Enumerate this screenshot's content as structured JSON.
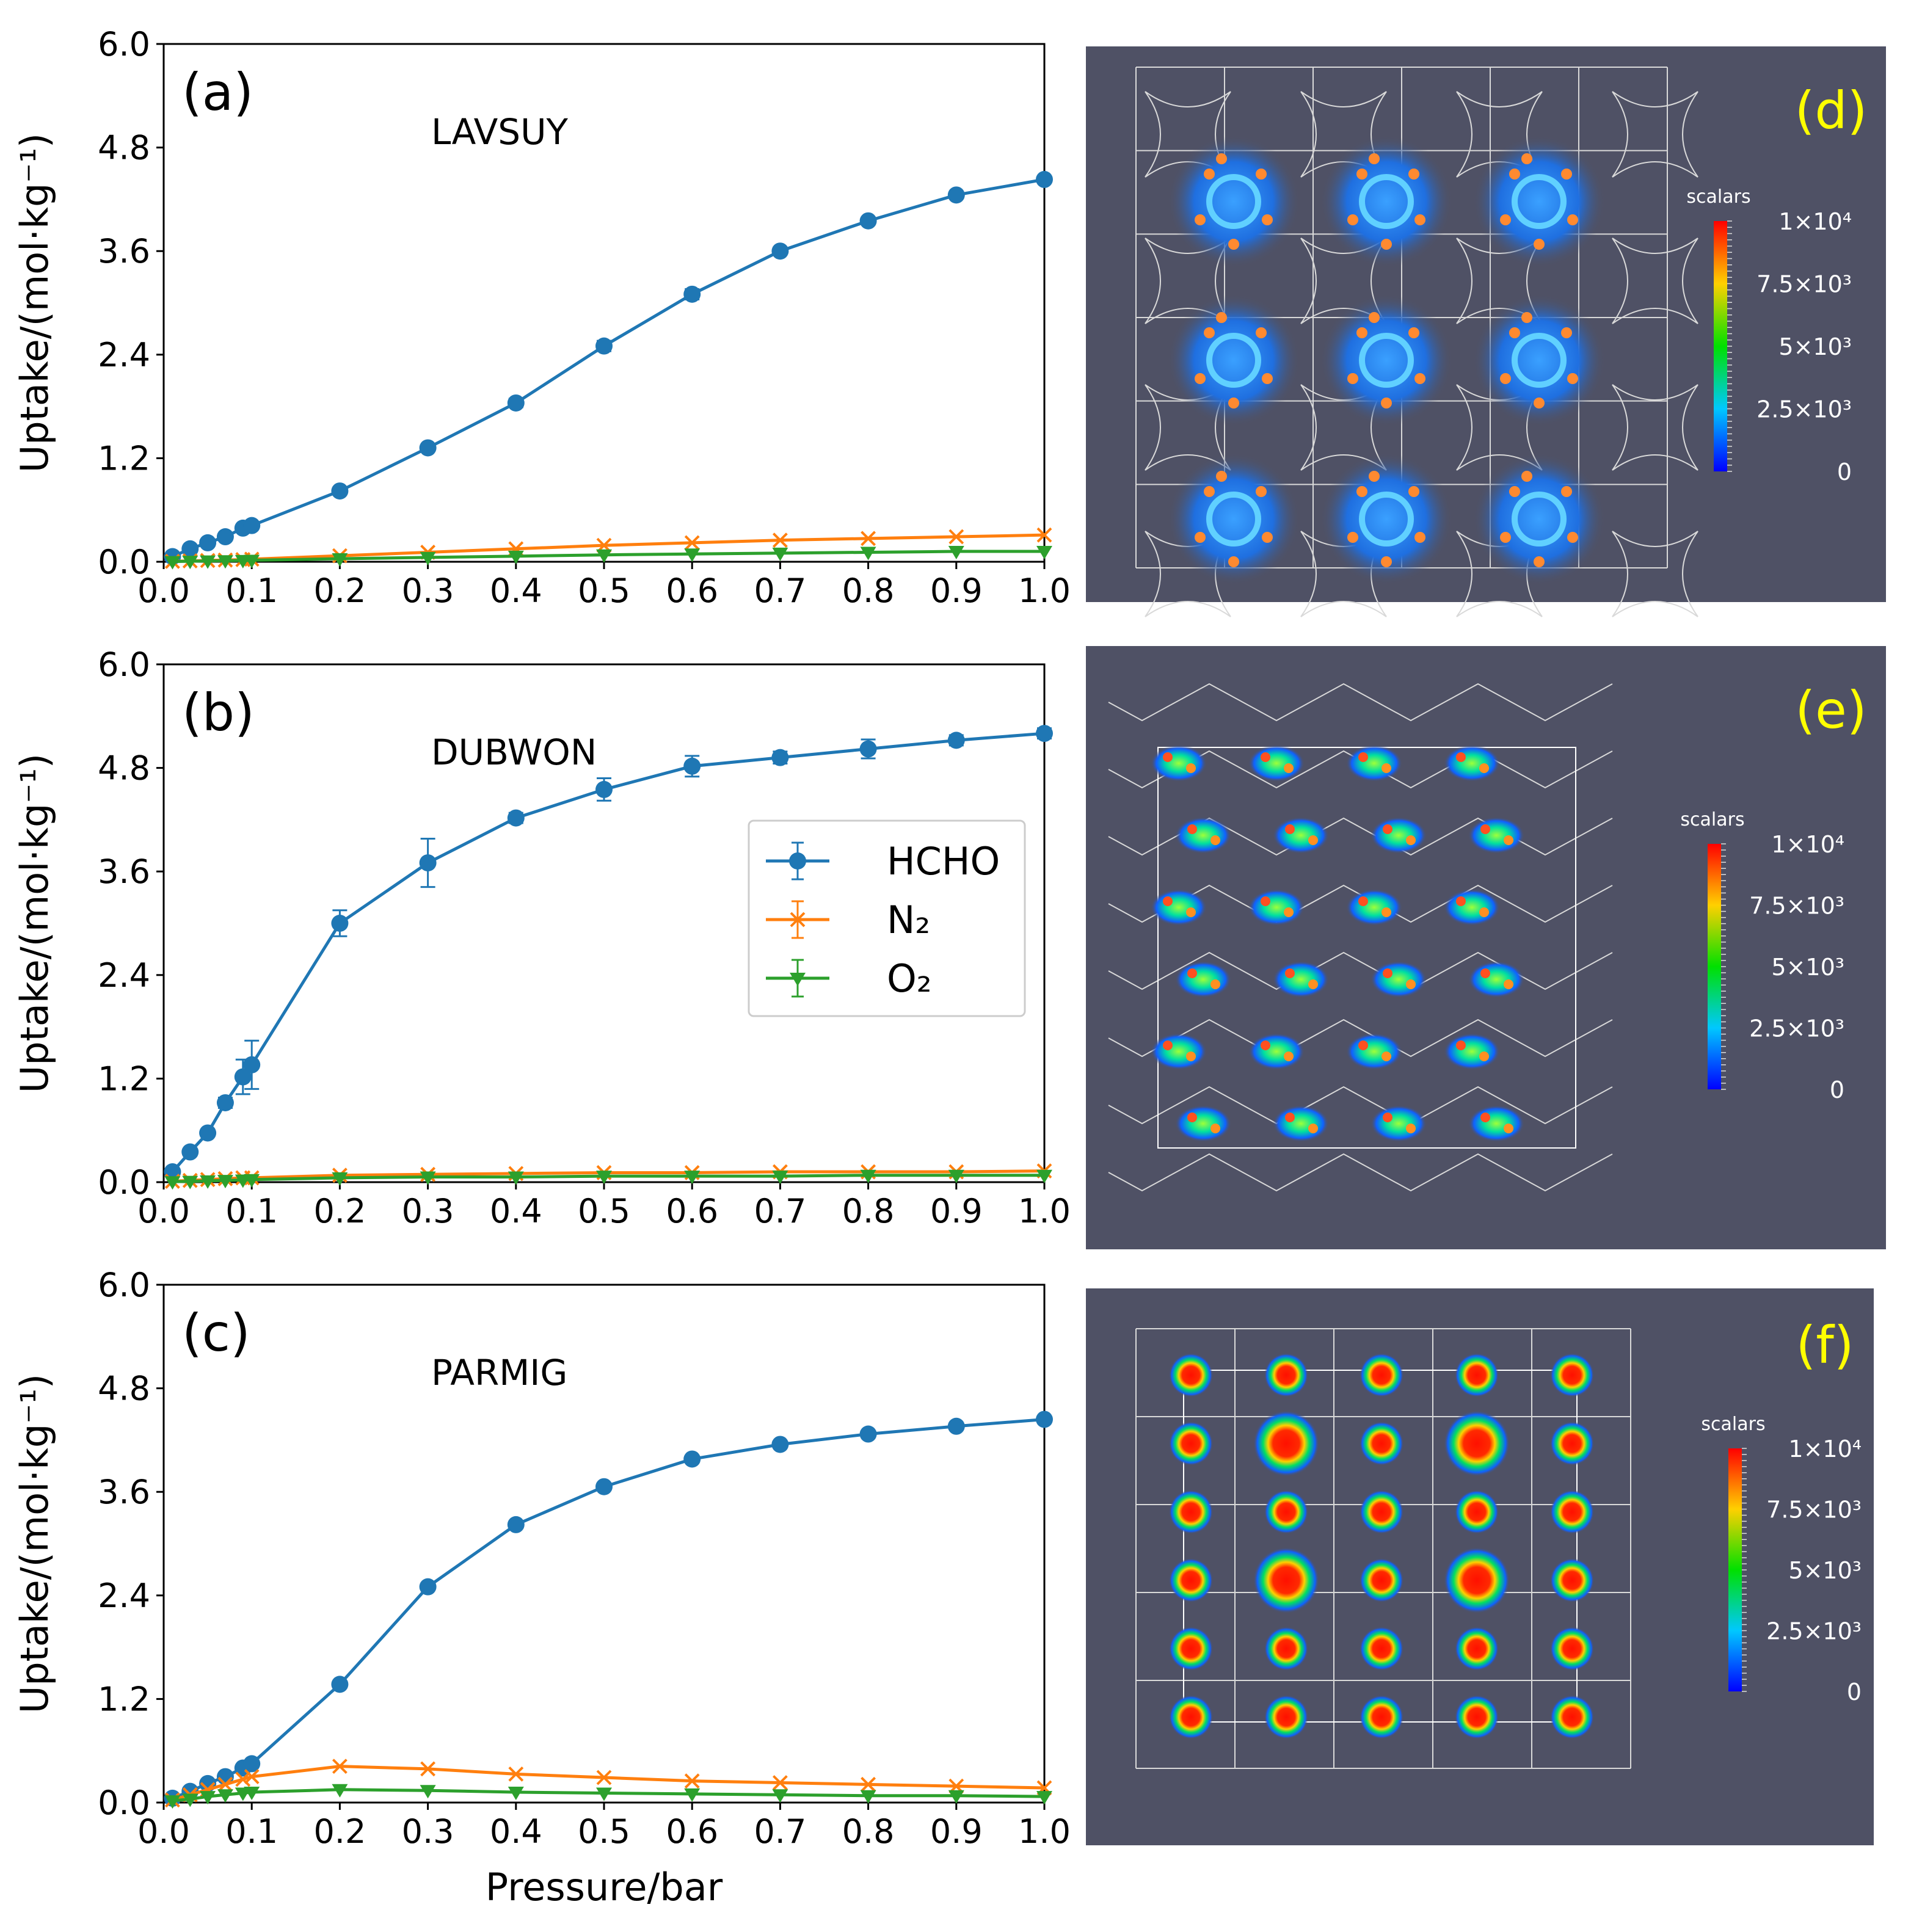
{
  "chart_data": [
    {
      "type": "line",
      "panel": "(a)",
      "name": "LAVSUY",
      "xlabel": "",
      "ylabel": "Uptake/(mol·kg⁻¹)",
      "xlim": [
        0,
        1.0
      ],
      "ylim": [
        0,
        6.0
      ],
      "xticks": [
        "0.0",
        "0.1",
        "0.2",
        "0.3",
        "0.4",
        "0.5",
        "0.6",
        "0.7",
        "0.8",
        "0.9",
        "1.0"
      ],
      "yticks": [
        "0.0",
        "1.2",
        "2.4",
        "3.6",
        "4.8",
        "6.0"
      ],
      "x": [
        0.01,
        0.03,
        0.05,
        0.07,
        0.09,
        0.1,
        0.2,
        0.3,
        0.4,
        0.5,
        0.6,
        0.7,
        0.8,
        0.9,
        1.0
      ],
      "series": [
        {
          "name": "HCHO",
          "values": [
            0.06,
            0.15,
            0.22,
            0.29,
            0.39,
            0.42,
            0.82,
            1.32,
            1.84,
            2.5,
            3.1,
            3.6,
            3.95,
            4.25,
            4.43
          ],
          "errors": [
            0.01,
            0.01,
            0.01,
            0.01,
            0.01,
            0.01,
            0.02,
            0.03,
            0.05,
            0.06,
            0.06,
            0.04,
            0.04,
            0.03,
            0.03
          ]
        },
        {
          "name": "N₂",
          "values": [
            0.005,
            0.01,
            0.015,
            0.02,
            0.025,
            0.03,
            0.07,
            0.11,
            0.15,
            0.19,
            0.22,
            0.25,
            0.27,
            0.29,
            0.31
          ],
          "errors": [
            0.005,
            0.005,
            0.005,
            0.005,
            0.005,
            0.005,
            0.005,
            0.01,
            0.01,
            0.01,
            0.01,
            0.01,
            0.01,
            0.01,
            0.01
          ]
        },
        {
          "name": "O₂",
          "values": [
            0.003,
            0.006,
            0.01,
            0.012,
            0.015,
            0.018,
            0.035,
            0.05,
            0.065,
            0.08,
            0.09,
            0.1,
            0.11,
            0.12,
            0.12
          ],
          "errors": [
            0.003,
            0.003,
            0.003,
            0.003,
            0.003,
            0.003,
            0.005,
            0.005,
            0.005,
            0.005,
            0.005,
            0.005,
            0.005,
            0.005,
            0.005
          ]
        }
      ]
    },
    {
      "type": "line",
      "panel": "(b)",
      "name": "DUBWON",
      "xlabel": "",
      "ylabel": "Uptake/(mol·kg⁻¹)",
      "xlim": [
        0,
        1.0
      ],
      "ylim": [
        0,
        6.0
      ],
      "xticks": [
        "0.0",
        "0.1",
        "0.2",
        "0.3",
        "0.4",
        "0.5",
        "0.6",
        "0.7",
        "0.8",
        "0.9",
        "1.0"
      ],
      "yticks": [
        "0.0",
        "1.2",
        "2.4",
        "3.6",
        "4.8",
        "6.0"
      ],
      "x": [
        0.01,
        0.03,
        0.05,
        0.07,
        0.09,
        0.1,
        0.2,
        0.3,
        0.4,
        0.5,
        0.6,
        0.7,
        0.8,
        0.9,
        1.0
      ],
      "series": [
        {
          "name": "HCHO",
          "values": [
            0.12,
            0.35,
            0.57,
            0.92,
            1.22,
            1.36,
            3.0,
            3.7,
            4.22,
            4.55,
            4.82,
            4.92,
            5.02,
            5.12,
            5.2
          ],
          "errors": [
            0.02,
            0.03,
            0.04,
            0.06,
            0.2,
            0.28,
            0.15,
            0.28,
            0.06,
            0.13,
            0.12,
            0.07,
            0.11,
            0.06,
            0.06
          ]
        },
        {
          "name": "N₂",
          "values": [
            0.01,
            0.02,
            0.03,
            0.04,
            0.05,
            0.05,
            0.08,
            0.09,
            0.1,
            0.11,
            0.11,
            0.12,
            0.12,
            0.12,
            0.13
          ],
          "errors": [
            0.005,
            0.005,
            0.005,
            0.005,
            0.005,
            0.005,
            0.005,
            0.005,
            0.005,
            0.005,
            0.005,
            0.005,
            0.005,
            0.005,
            0.005
          ]
        },
        {
          "name": "O₂",
          "values": [
            0.005,
            0.01,
            0.015,
            0.02,
            0.025,
            0.03,
            0.05,
            0.06,
            0.06,
            0.07,
            0.07,
            0.07,
            0.08,
            0.08,
            0.08
          ],
          "errors": [
            0.003,
            0.003,
            0.003,
            0.003,
            0.003,
            0.003,
            0.003,
            0.003,
            0.003,
            0.003,
            0.003,
            0.003,
            0.003,
            0.003,
            0.003
          ]
        }
      ]
    },
    {
      "type": "line",
      "panel": "(c)",
      "name": "PARMIG",
      "xlabel": "Pressure/bar",
      "ylabel": "Uptake/(mol·kg⁻¹)",
      "xlim": [
        0,
        1.0
      ],
      "ylim": [
        0,
        6.0
      ],
      "xticks": [
        "0.0",
        "0.1",
        "0.2",
        "0.3",
        "0.4",
        "0.5",
        "0.6",
        "0.7",
        "0.8",
        "0.9",
        "1.0"
      ],
      "yticks": [
        "0.0",
        "1.2",
        "2.4",
        "3.6",
        "4.8",
        "6.0"
      ],
      "x": [
        0.01,
        0.03,
        0.05,
        0.07,
        0.09,
        0.1,
        0.2,
        0.3,
        0.4,
        0.5,
        0.6,
        0.7,
        0.8,
        0.9,
        1.0
      ],
      "series": [
        {
          "name": "HCHO",
          "values": [
            0.05,
            0.13,
            0.22,
            0.3,
            0.4,
            0.45,
            1.37,
            2.5,
            3.22,
            3.66,
            3.98,
            4.15,
            4.27,
            4.36,
            4.44
          ],
          "errors": [
            0.01,
            0.01,
            0.01,
            0.01,
            0.02,
            0.02,
            0.03,
            0.03,
            0.03,
            0.03,
            0.03,
            0.03,
            0.03,
            0.03,
            0.03
          ]
        },
        {
          "name": "N₂",
          "values": [
            0.03,
            0.09,
            0.15,
            0.21,
            0.27,
            0.3,
            0.42,
            0.39,
            0.33,
            0.29,
            0.25,
            0.23,
            0.21,
            0.19,
            0.17
          ],
          "errors": [
            0.01,
            0.01,
            0.01,
            0.01,
            0.01,
            0.01,
            0.01,
            0.01,
            0.01,
            0.01,
            0.01,
            0.01,
            0.01,
            0.01,
            0.01
          ]
        },
        {
          "name": "O₂",
          "values": [
            0.02,
            0.04,
            0.07,
            0.09,
            0.11,
            0.12,
            0.15,
            0.14,
            0.12,
            0.11,
            0.1,
            0.09,
            0.08,
            0.08,
            0.07
          ],
          "errors": [
            0.005,
            0.005,
            0.005,
            0.005,
            0.005,
            0.005,
            0.005,
            0.005,
            0.005,
            0.005,
            0.005,
            0.005,
            0.005,
            0.005,
            0.005
          ]
        }
      ]
    }
  ],
  "legend": {
    "placement": "center-right of panel (b)",
    "entries": [
      {
        "label": "HCHO",
        "color": "#1f77b4",
        "marker": "circle"
      },
      {
        "label": "N₂",
        "color": "#ff7f0e",
        "marker": "x"
      },
      {
        "label": "O₂",
        "color": "#2ca02c",
        "marker": "triangle-down"
      }
    ]
  },
  "colors": {
    "HCHO": "#1f77b4",
    "N2": "#ff7f0e",
    "O2": "#2ca02c",
    "heatmap_bg": "#4f5165",
    "panel_letter": "#ffff00"
  },
  "heatmaps": [
    {
      "panel": "(d)",
      "colorbar_title": "scalars",
      "colorbar_labels": [
        "1×10⁴",
        "7.5×10³",
        "5×10³",
        "2.5×10³",
        "0"
      ]
    },
    {
      "panel": "(e)",
      "colorbar_title": "scalars",
      "colorbar_labels": [
        "1×10⁴",
        "7.5×10³",
        "5×10³",
        "2.5×10³",
        "0"
      ]
    },
    {
      "panel": "(f)",
      "colorbar_title": "scalars",
      "colorbar_labels": [
        "1×10⁴",
        "7.5×10³",
        "5×10³",
        "2.5×10³",
        "0"
      ]
    }
  ]
}
